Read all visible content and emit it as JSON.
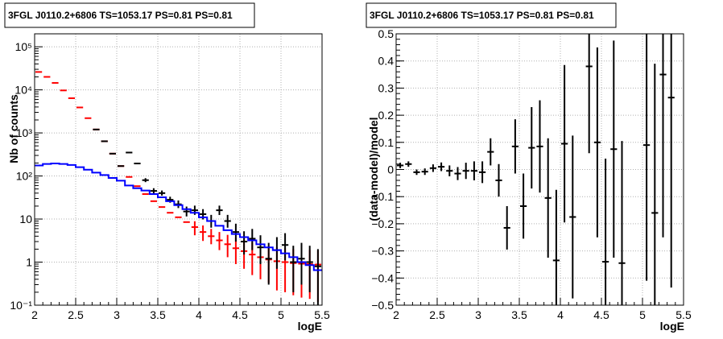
{
  "chart_data": [
    {
      "type": "line",
      "title": "3FGL J0110.2+6806 TS=1053.17 PS=0.81 PS=0.81",
      "xlabel": "logE",
      "ylabel": "Nb of counts",
      "xlim": [
        2,
        5.5
      ],
      "ylim": [
        0.1,
        200000
      ],
      "yscale": "log",
      "grid": true,
      "x_ticks": [
        "2",
        "2.5",
        "3",
        "3.5",
        "4",
        "4.5",
        "5",
        "5.5"
      ],
      "y_ticks": [
        "10⁻¹",
        "1",
        "10",
        "10²",
        "10³",
        "10⁴",
        "10⁵"
      ],
      "bin_edges": [
        2.0,
        2.1,
        2.2,
        2.3,
        2.4,
        2.5,
        2.6,
        2.7,
        2.8,
        2.9,
        3.0,
        3.1,
        3.2,
        3.3,
        3.4,
        3.5,
        3.6,
        3.7,
        3.8,
        3.9,
        4.0,
        4.1,
        4.2,
        4.3,
        4.4,
        4.5,
        4.6,
        4.7,
        4.8,
        4.9,
        5.0,
        5.1,
        5.2,
        5.3,
        5.4,
        5.5
      ],
      "series": [
        {
          "color": "#ff0000",
          "style": "errorbar",
          "x": [
            2.05,
            2.15,
            2.25,
            2.35,
            2.45,
            2.55,
            2.65,
            2.75,
            2.85,
            2.95,
            3.05,
            3.15,
            3.25,
            3.35,
            3.45,
            3.55,
            3.65,
            3.75,
            3.85,
            3.95,
            4.05,
            4.15,
            4.25,
            4.35,
            4.45,
            4.55,
            4.65,
            4.75,
            4.85,
            4.95,
            5.05,
            5.15,
            5.25,
            5.35,
            5.45
          ],
          "values": [
            26000,
            20000,
            14500,
            9700,
            6400,
            3900,
            2200,
            1200,
            640,
            330,
            170,
            95,
            58,
            38,
            26,
            19,
            14,
            11,
            8.5,
            6.5,
            5.0,
            4.0,
            3.2,
            2.6,
            2.1,
            1.8,
            1.5,
            1.3,
            1.15,
            1.05,
            1.0,
            0.95,
            0.92,
            0.9,
            0.88
          ],
          "err_low": [
            0,
            0,
            0,
            0,
            0,
            0,
            0,
            0,
            0,
            0,
            0,
            0,
            0,
            0,
            0,
            0,
            0,
            0,
            0,
            2.3,
            1.9,
            1.4,
            1.3,
            1.3,
            1.2,
            1.1,
            1.0,
            0.9,
            0.82,
            0.83,
            0.8,
            0.78,
            0.77,
            0.76,
            0.76
          ],
          "err_high": [
            0,
            0,
            0,
            0,
            0,
            0,
            0,
            0,
            0,
            0,
            0,
            0,
            0,
            0,
            0,
            0,
            0,
            0,
            0,
            2.4,
            2.1,
            1.9,
            1.8,
            1.7,
            1.6,
            1.5,
            1.4,
            1.3,
            1.2,
            1.15,
            1.1,
            1.05,
            1.03,
            1.02,
            1.0
          ]
        },
        {
          "color": "#000000",
          "style": "errorbar",
          "x": [
            2.75,
            2.85,
            2.95,
            3.05,
            3.15,
            3.25,
            3.35,
            3.45,
            3.55,
            3.65,
            3.75,
            3.85,
            3.95,
            4.05,
            4.15,
            4.25,
            4.35,
            4.45,
            4.55,
            4.65,
            4.75,
            4.85,
            4.95,
            5.05,
            5.15,
            5.25,
            5.35,
            5.45
          ],
          "values": [
            1200,
            640,
            330,
            170,
            350,
            195,
            80,
            45,
            40,
            28,
            22,
            15,
            16,
            13,
            9,
            16,
            9,
            5,
            3,
            3.5,
            2.2,
            1.2,
            1.9,
            2.5,
            1.0,
            1.2,
            1.0,
            0.8
          ],
          "err_low": [
            0,
            0,
            0,
            0,
            0,
            0,
            8,
            6,
            5,
            4,
            4,
            3.5,
            3.5,
            3.2,
            2.7,
            3.6,
            2.7,
            2.0,
            1.5,
            1.6,
            1.3,
            0.9,
            1.2,
            1.4,
            0.8,
            0.9,
            0.8,
            0.7
          ],
          "err_high": [
            0,
            0,
            0,
            0,
            0,
            0,
            9,
            7,
            6,
            5,
            5,
            4.5,
            4.5,
            4,
            3.5,
            4.5,
            3.5,
            2.8,
            2.2,
            2.4,
            2.0,
            1.6,
            1.9,
            2.2,
            1.4,
            1.6,
            1.4,
            1.2
          ]
        },
        {
          "color": "#0000ff",
          "style": "step",
          "values": [
            175,
            190,
            195,
            190,
            180,
            160,
            140,
            120,
            105,
            90,
            78,
            60,
            52,
            46,
            38,
            32,
            26,
            21,
            17,
            14,
            11,
            9,
            7,
            5.5,
            4.5,
            3.8,
            3.2,
            2.6,
            2.2,
            1.9,
            1.6,
            1.3,
            1.0,
            0.85,
            0.65
          ]
        }
      ]
    },
    {
      "type": "scatter",
      "title": "3FGL J0110.2+6806 TS=1053.17 PS=0.81 PS=0.81",
      "xlabel": "logE",
      "ylabel": "(data-model)/model",
      "xlim": [
        2,
        5.5
      ],
      "ylim": [
        -0.5,
        0.5
      ],
      "grid": true,
      "x_ticks": [
        "2",
        "2.5",
        "3",
        "3.5",
        "4",
        "4.5",
        "5",
        "5.5"
      ],
      "y_ticks": [
        "−0.5",
        "−0.4",
        "−0.3",
        "−0.2",
        "−0.1",
        "0",
        "0.1",
        "0.2",
        "0.3",
        "0.4",
        "0.5"
      ],
      "series": [
        {
          "color": "#000000",
          "style": "errorbar",
          "x": [
            2.05,
            2.15,
            2.25,
            2.35,
            2.45,
            2.55,
            2.65,
            2.75,
            2.85,
            2.95,
            3.05,
            3.15,
            3.25,
            3.35,
            3.45,
            3.55,
            3.65,
            3.75,
            3.85,
            3.95,
            4.05,
            4.15,
            4.35,
            4.45,
            4.55,
            4.65,
            4.75,
            5.05,
            5.15,
            5.25,
            5.35
          ],
          "values": [
            0.015,
            0.02,
            -0.01,
            -0.008,
            0.005,
            0.01,
            -0.005,
            -0.015,
            -0.005,
            -0.005,
            -0.01,
            0.065,
            -0.04,
            -0.215,
            0.085,
            -0.135,
            0.08,
            0.085,
            -0.105,
            -0.335,
            0.095,
            -0.175,
            0.38,
            0.1,
            -0.34,
            0.075,
            -0.345,
            0.09,
            -0.16,
            0.35,
            0.265
          ],
          "err": [
            0.01,
            0.01,
            0.01,
            0.012,
            0.014,
            0.016,
            0.02,
            0.024,
            0.03,
            0.035,
            0.04,
            0.05,
            0.06,
            0.08,
            0.1,
            0.12,
            0.15,
            0.17,
            0.22,
            0.26,
            0.29,
            0.3,
            0.32,
            0.35,
            0.38,
            0.4,
            0.45,
            0.5,
            0.55,
            0.6,
            0.7
          ]
        }
      ]
    }
  ]
}
